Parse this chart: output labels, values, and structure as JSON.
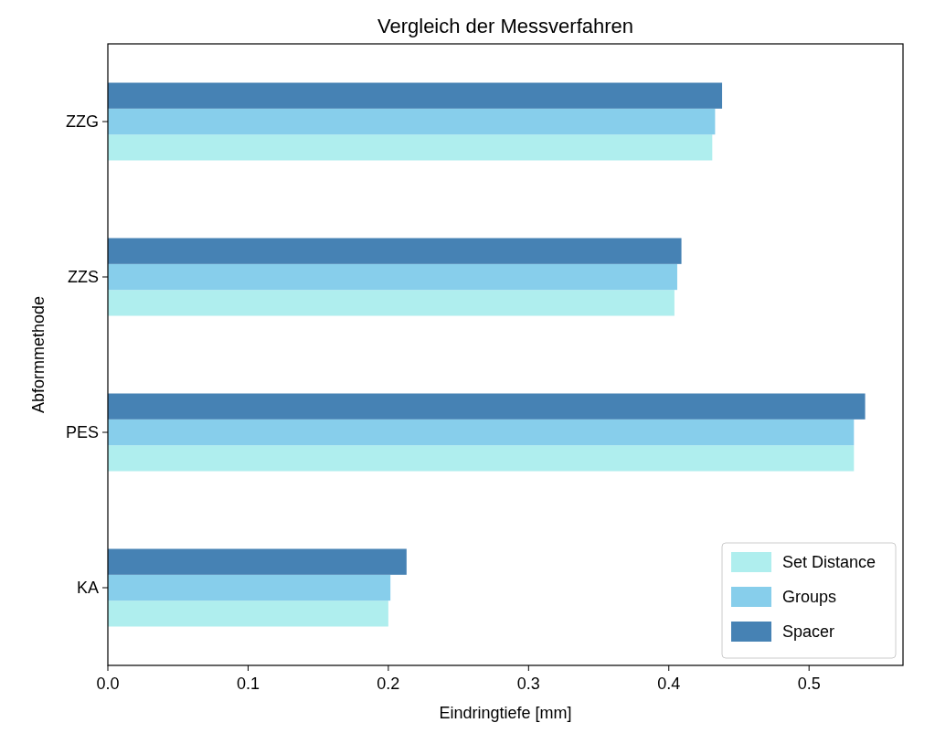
{
  "chart_data": {
    "type": "bar",
    "orientation": "horizontal",
    "title": "Vergleich der Messverfahren",
    "xlabel": "Eindringtiefe [mm]",
    "ylabel": "Abformmethode",
    "categories": [
      "ZZG",
      "ZZS",
      "PES",
      "KA"
    ],
    "series": [
      {
        "name": "Set Distance",
        "color": "#afeeee",
        "values": [
          0.431,
          0.404,
          0.532,
          0.2
        ]
      },
      {
        "name": "Groups",
        "color": "#87ceeb",
        "values": [
          0.433,
          0.406,
          0.532,
          0.2015
        ]
      },
      {
        "name": "Spacer",
        "color": "#4682b4",
        "values": [
          0.438,
          0.409,
          0.54,
          0.213
        ]
      }
    ],
    "xlim": [
      0,
      0.567
    ],
    "xticks": [
      {
        "value": 0,
        "label": "0.0"
      },
      0.1,
      0.2,
      0.3,
      0.4,
      0.5
    ],
    "legend": "bottom right",
    "grid": false
  }
}
